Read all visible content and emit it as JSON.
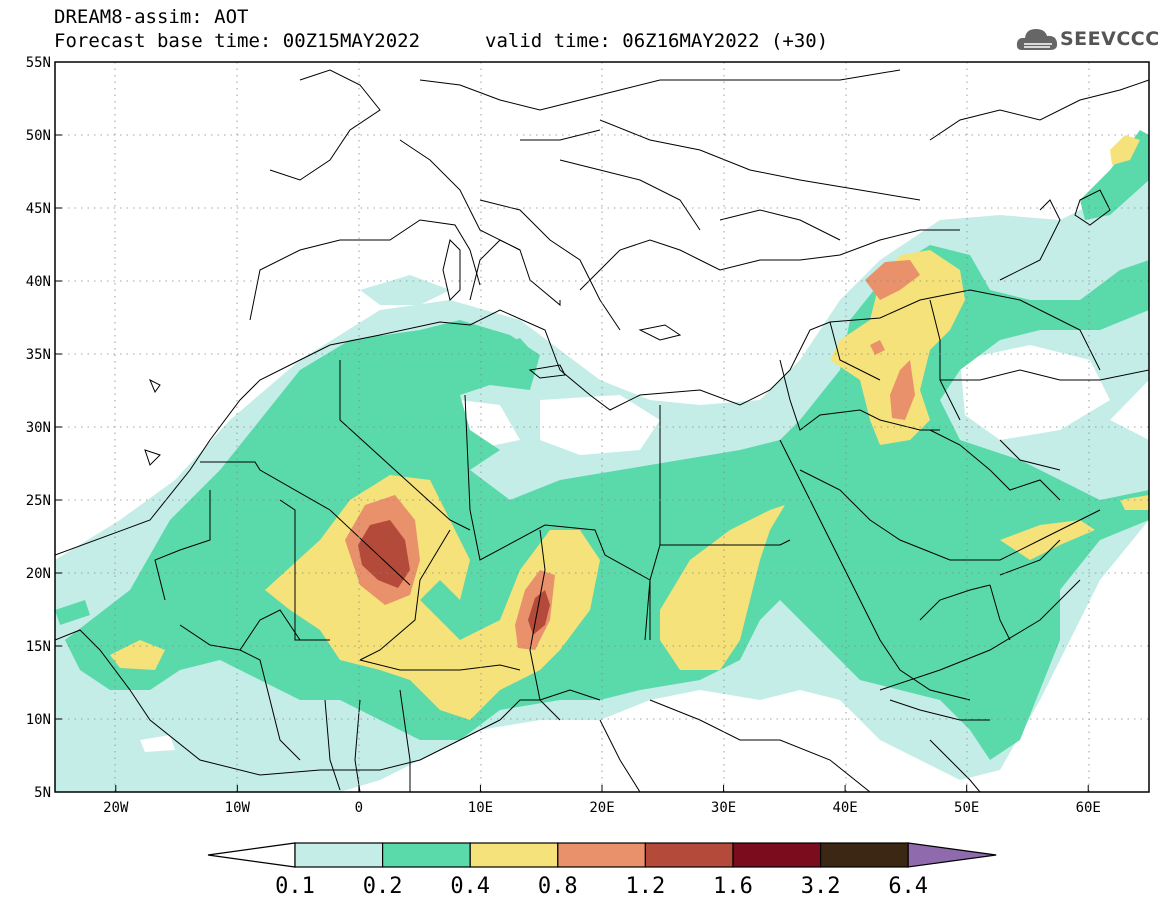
{
  "header": {
    "line1": "DREAM8-assim: AOT",
    "base_time": "Forecast base time: 00Z15MAY2022",
    "valid_time": "valid time: 06Z16MAY2022 (+30)",
    "logo_text": "SEEVCCC"
  },
  "map": {
    "lon_range": [
      -25,
      65
    ],
    "lat_range": [
      5,
      55
    ],
    "lat_labels": [
      "55N",
      "50N",
      "45N",
      "40N",
      "35N",
      "30N",
      "25N",
      "20N",
      "15N",
      "10N",
      "5N"
    ],
    "lat_values": [
      55,
      50,
      45,
      40,
      35,
      30,
      25,
      20,
      15,
      10,
      5
    ],
    "lon_labels": [
      "20W",
      "10W",
      "0",
      "10E",
      "20E",
      "30E",
      "40E",
      "50E",
      "60E"
    ],
    "lon_values": [
      -20,
      -10,
      0,
      10,
      20,
      30,
      40,
      50,
      60
    ]
  },
  "colorbar": {
    "colors": [
      "#c4ede8",
      "#5ad9aa",
      "#f5e27a",
      "#e8916a",
      "#b34a3a",
      "#7a0c1e",
      "#3c2614",
      "#8f6aac"
    ],
    "labels": [
      "0.1",
      "0.2",
      "0.4",
      "0.8",
      "1.2",
      "1.6",
      "3.2",
      "6.4"
    ]
  }
}
